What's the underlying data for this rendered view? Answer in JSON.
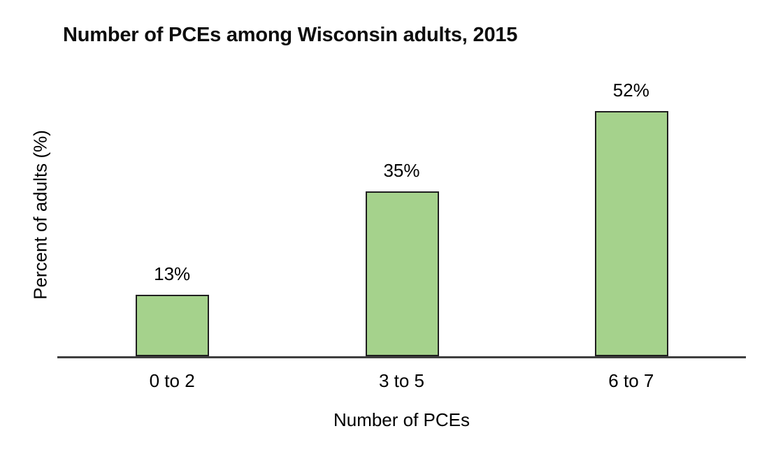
{
  "chart_data": {
    "type": "bar",
    "title": "Number of PCEs among Wisconsin adults, 2015",
    "xlabel": "Number of PCEs",
    "ylabel": "Percent of adults (%)",
    "categories": [
      "0 to 2",
      "3 to 5",
      "6 to 7"
    ],
    "values": [
      13,
      35,
      52
    ],
    "value_labels": [
      "13%",
      "35%",
      "52%"
    ],
    "ylim": [
      0,
      60
    ],
    "grid": false,
    "legend": "none",
    "bar_fill_color": "#a5d28c",
    "bar_border_color": "#1f1f1f",
    "axis_line_color": "#3f3f3f",
    "text_color": "#000000"
  }
}
